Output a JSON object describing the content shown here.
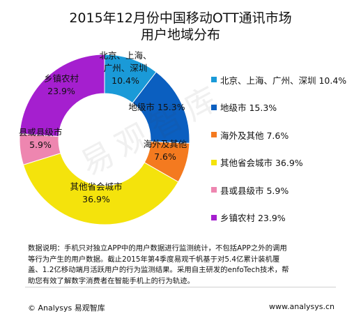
{
  "chart_data": {
    "type": "pie",
    "variant": "donut",
    "title_line1": "2015年12月份中国移动OTT通讯市场",
    "title_line2": "用户地域分布",
    "slices": [
      {
        "name": "北京、上海、广州、深圳",
        "value": 10.4,
        "label_lines": [
          "北京、上海、",
          "广州、深圳",
          "10.4%"
        ],
        "color": "#1a9ad8"
      },
      {
        "name": "地级市",
        "value": 15.3,
        "label_lines": [
          "地级市 15.3%"
        ],
        "color": "#0b5fc0"
      },
      {
        "name": "海外及其他",
        "value": 7.6,
        "label_lines": [
          "海外及其他",
          "7.6%"
        ],
        "color": "#f47a1f"
      },
      {
        "name": "其他省会城市",
        "value": 36.9,
        "label_lines": [
          "其他省会城市",
          "36.9%"
        ],
        "color": "#f4e30c"
      },
      {
        "name": "县或县级市",
        "value": 5.9,
        "label_lines": [
          "县或县级市",
          "5.9%"
        ],
        "color": "#ee86b0"
      },
      {
        "name": "乡镇农村",
        "value": 23.9,
        "label_lines": [
          "乡镇农村",
          "23.9%"
        ],
        "color": "#a51fcf"
      }
    ],
    "legend_placement": "right",
    "legend": [
      "北京、上海、广州、深圳 10.4%",
      "地级市 15.3%",
      "海外及其他 7.6%",
      "其他省会城市 36.9%",
      "县或县级市 5.9%",
      "乡镇农村 23.9%"
    ]
  },
  "note": {
    "line1": "数据说明：手机只对独立APP中的用户数据进行监测统计，不包括APP之外的调用",
    "line2": "等行为产生的用户数据。截止2015年第4季度易观千帆基于对5.4亿累计装机覆",
    "line3": "盖、1.2亿移动端月活跃用户的行为监测结果。采用自主研发的enfoTech技术，帮",
    "line4": "助您有效了解数字消费者在智能手机上的行为轨迹。"
  },
  "footer": {
    "left": "© Analysys 易观智库",
    "right": "www.analysys.cn"
  },
  "watermark": "易观智库"
}
